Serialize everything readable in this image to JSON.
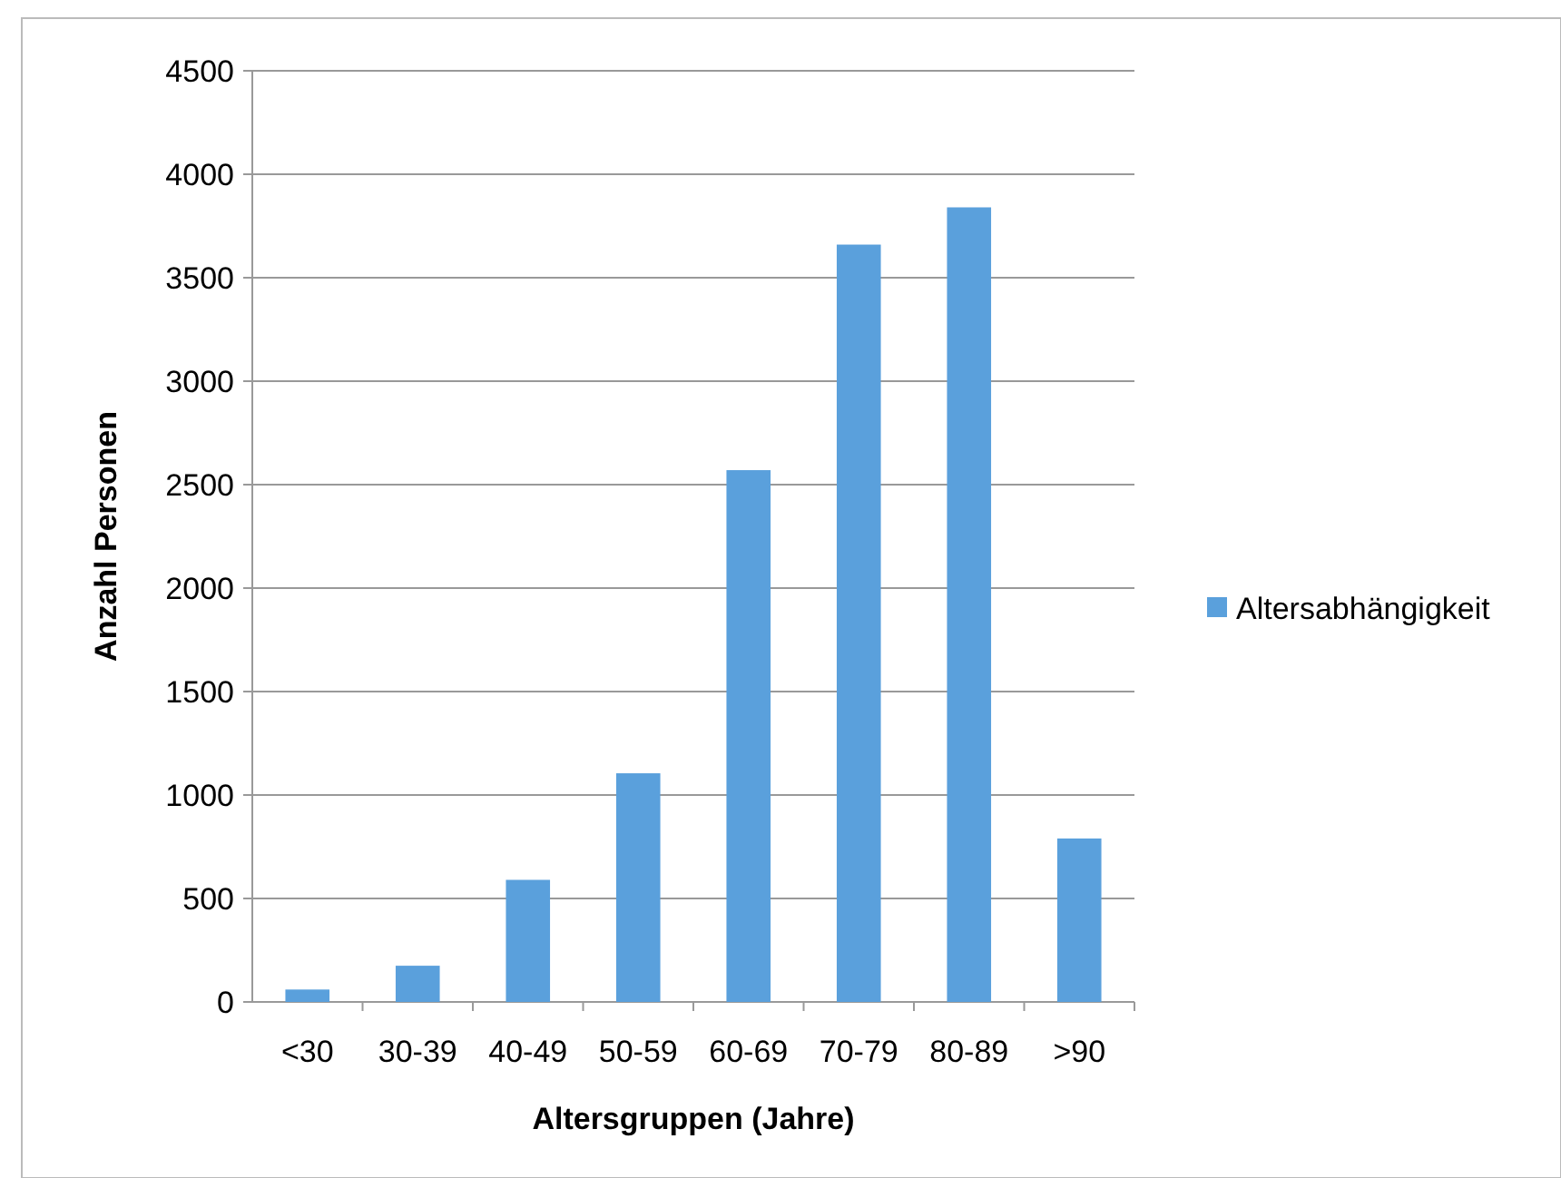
{
  "chart_data": {
    "type": "bar",
    "xlabel": "Altersgruppen (Jahre)",
    "ylabel": "Anzahl Personen",
    "categories": [
      "<30",
      "30-39",
      "40-49",
      "50-59",
      "60-69",
      "70-79",
      "80-89",
      ">90"
    ],
    "series": [
      {
        "name": "Altersabhängigkeit",
        "color": "#5aa0dc",
        "values": [
          60,
          175,
          590,
          1105,
          2570,
          3660,
          3840,
          790
        ]
      }
    ],
    "ylim": [
      0,
      4500
    ],
    "yticks": [
      0,
      500,
      1000,
      1500,
      2000,
      2500,
      3000,
      3500,
      4000,
      4500
    ],
    "grid": "y",
    "legend": "right"
  }
}
